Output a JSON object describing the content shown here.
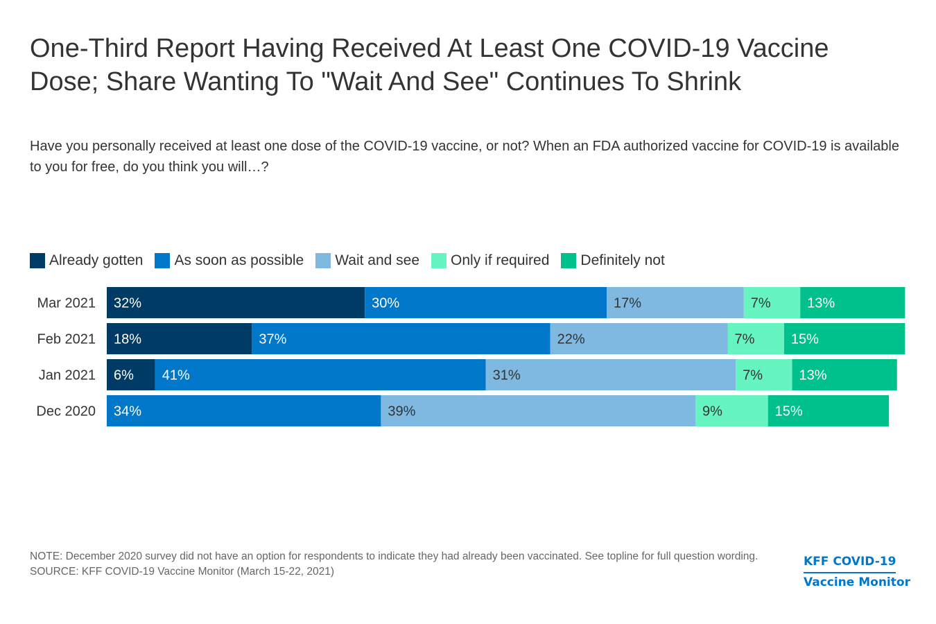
{
  "title": "One-Third Report Having Received At Least One COVID-19 Vaccine Dose; Share Wanting To \"Wait And See\" Continues To Shrink",
  "subtitle": "Have you personally received at least one dose of the COVID-19 vaccine, or not? When an FDA authorized vaccine for COVID-19 is available to you for free, do you think you will…?",
  "legend": [
    {
      "label": "Already gotten",
      "color": "#003b66"
    },
    {
      "label": "As soon as possible",
      "color": "#0077c8"
    },
    {
      "label": "Wait and see",
      "color": "#7fb9e2"
    },
    {
      "label": "Only if required",
      "color": "#66f4c0"
    },
    {
      "label": "Definitely not",
      "color": "#00c08b"
    }
  ],
  "chart_data": {
    "type": "bar",
    "orientation": "horizontal",
    "stacked": true,
    "categories": [
      "Mar 2021",
      "Feb 2021",
      "Jan 2021",
      "Dec 2020"
    ],
    "series": [
      {
        "name": "Already gotten",
        "color": "#003b66",
        "values": [
          32,
          18,
          6,
          null
        ],
        "labels": [
          "32%",
          "18%",
          "6%",
          ""
        ],
        "label_color": "#ffffff"
      },
      {
        "name": "As soon as possible",
        "color": "#0077c8",
        "values": [
          30,
          37,
          41,
          34
        ],
        "labels": [
          "30%",
          "37%",
          "41%",
          "34%"
        ],
        "label_color": "#ffffff"
      },
      {
        "name": "Wait and see",
        "color": "#7fb9e2",
        "values": [
          17,
          22,
          31,
          39
        ],
        "labels": [
          "17%",
          "22%",
          "31%",
          "39%"
        ],
        "label_color": "#333333"
      },
      {
        "name": "Only if required",
        "color": "#66f4c0",
        "values": [
          7,
          7,
          7,
          9
        ],
        "labels": [
          "7%",
          "7%",
          "7%",
          "9%"
        ],
        "label_color": "#333333"
      },
      {
        "name": "Definitely not",
        "color": "#00c08b",
        "values": [
          13,
          15,
          13,
          15
        ],
        "labels": [
          "13%",
          "15%",
          "13%",
          "15%"
        ],
        "label_color": "#ffffff"
      }
    ],
    "xlim": [
      0,
      100
    ],
    "grid": false,
    "legend_position": "top"
  },
  "footer": {
    "note": "NOTE: December 2020 survey did not have an option for respondents to indicate they had already been vaccinated. See topline for full question wording.",
    "source": "SOURCE: KFF COVID-19 Vaccine Monitor (March 15-22, 2021)"
  },
  "brand": {
    "line1": "KFF COVID-19",
    "line2": "Vaccine Monitor"
  }
}
